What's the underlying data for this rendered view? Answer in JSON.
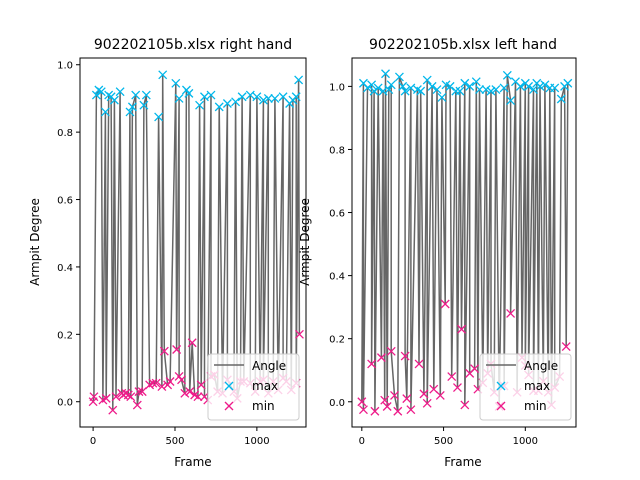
{
  "colors": {
    "angle": "#666666",
    "max": "#00b7eb",
    "min": "#ee1b8a"
  },
  "chart_data": [
    {
      "type": "line",
      "title": "902202105b.xlsx right hand",
      "xlabel": "Frame",
      "ylabel": "Armpit Degree",
      "xlim": [
        -80,
        1300
      ],
      "ylim": [
        -0.075,
        1.02
      ],
      "xticks": [
        "0",
        "500",
        "1000"
      ],
      "xtick_values": [
        0,
        500,
        1000
      ],
      "yticks": [
        "0.0",
        "0.2",
        "0.4",
        "0.6",
        "0.8",
        "1.0"
      ],
      "ytick_values": [
        0,
        0.2,
        0.4,
        0.6,
        0.8,
        1.0
      ],
      "legend": {
        "placement": "lower right",
        "entries": [
          "Angle",
          "max",
          "min"
        ]
      },
      "series": [
        {
          "name": "max",
          "marker": "x",
          "points": [
            [
              20,
              0.91
            ],
            [
              35,
              0.925
            ],
            [
              50,
              0.92
            ],
            [
              75,
              0.86
            ],
            [
              95,
              0.91
            ],
            [
              110,
              0.905
            ],
            [
              130,
              0.895
            ],
            [
              165,
              0.92
            ],
            [
              225,
              0.86
            ],
            [
              240,
              0.875
            ],
            [
              260,
              0.91
            ],
            [
              310,
              0.88
            ],
            [
              325,
              0.91
            ],
            [
              400,
              0.845
            ],
            [
              425,
              0.97
            ],
            [
              505,
              0.945
            ],
            [
              525,
              0.9
            ],
            [
              570,
              0.925
            ],
            [
              585,
              0.915
            ],
            [
              650,
              0.88
            ],
            [
              680,
              0.905
            ],
            [
              720,
              0.91
            ],
            [
              770,
              0.875
            ],
            [
              820,
              0.885
            ],
            [
              870,
              0.89
            ],
            [
              910,
              0.905
            ],
            [
              960,
              0.91
            ],
            [
              1000,
              0.905
            ],
            [
              1040,
              0.895
            ],
            [
              1070,
              0.9
            ],
            [
              1110,
              0.9
            ],
            [
              1160,
              0.905
            ],
            [
              1200,
              0.885
            ],
            [
              1220,
              0.895
            ],
            [
              1240,
              0.905
            ],
            [
              1255,
              0.955
            ]
          ]
        },
        {
          "name": "min",
          "marker": "x",
          "points": [
            [
              0,
              0.0
            ],
            [
              5,
              0.015
            ],
            [
              60,
              0.005
            ],
            [
              80,
              0.01
            ],
            [
              120,
              -0.025
            ],
            [
              140,
              0.015
            ],
            [
              175,
              0.025
            ],
            [
              185,
              0.02
            ],
            [
              200,
              0.025
            ],
            [
              215,
              0.02
            ],
            [
              230,
              0.015
            ],
            [
              270,
              -0.01
            ],
            [
              280,
              0.03
            ],
            [
              300,
              0.03
            ],
            [
              345,
              0.05
            ],
            [
              365,
              0.055
            ],
            [
              385,
              0.055
            ],
            [
              420,
              0.045
            ],
            [
              435,
              0.15
            ],
            [
              455,
              0.05
            ],
            [
              470,
              0.06
            ],
            [
              510,
              0.155
            ],
            [
              525,
              0.075
            ],
            [
              540,
              0.065
            ],
            [
              560,
              0.025
            ],
            [
              590,
              0.03
            ],
            [
              605,
              0.175
            ],
            [
              620,
              0.02
            ],
            [
              640,
              0.015
            ],
            [
              660,
              0.05
            ],
            [
              680,
              0.015
            ],
            [
              700,
              0.005
            ],
            [
              720,
              0.075
            ],
            [
              740,
              0.08
            ],
            [
              760,
              0.03
            ],
            [
              790,
              0.025
            ],
            [
              820,
              0.065
            ],
            [
              860,
              0.03
            ],
            [
              880,
              0.01
            ],
            [
              900,
              0.06
            ],
            [
              920,
              0.06
            ],
            [
              960,
              0.055
            ],
            [
              990,
              0.03
            ],
            [
              1020,
              0.06
            ],
            [
              1040,
              0.065
            ],
            [
              1070,
              0.025
            ],
            [
              1100,
              0.06
            ],
            [
              1130,
              0.035
            ],
            [
              1160,
              0.07
            ],
            [
              1180,
              0.06
            ],
            [
              1210,
              0.035
            ],
            [
              1240,
              0.055
            ],
            [
              1260,
              0.2
            ]
          ]
        }
      ]
    },
    {
      "type": "line",
      "title": "902202105b.xlsx left hand",
      "xlabel": "Frame",
      "ylabel": "Armpit Degree",
      "xlim": [
        -60,
        1310
      ],
      "ylim": [
        -0.08,
        1.09
      ],
      "xticks": [
        "0",
        "500",
        "1000"
      ],
      "xtick_values": [
        0,
        500,
        1000
      ],
      "yticks": [
        "0.0",
        "0.2",
        "0.4",
        "0.6",
        "0.8",
        "1.0"
      ],
      "ytick_values": [
        0,
        0.2,
        0.4,
        0.6,
        0.8,
        1.0
      ],
      "legend": {
        "placement": "lower right",
        "entries": [
          "Angle",
          "max",
          "min"
        ]
      },
      "series": [
        {
          "name": "max",
          "marker": "x",
          "points": [
            [
              10,
              1.01
            ],
            [
              35,
              0.995
            ],
            [
              60,
              1.005
            ],
            [
              75,
              0.985
            ],
            [
              100,
              0.995
            ],
            [
              130,
              0.985
            ],
            [
              145,
              1.04
            ],
            [
              165,
              0.99
            ],
            [
              180,
              1.005
            ],
            [
              230,
              1.03
            ],
            [
              250,
              1.0
            ],
            [
              265,
              0.985
            ],
            [
              300,
              0.995
            ],
            [
              340,
              0.99
            ],
            [
              360,
              0.985
            ],
            [
              400,
              1.02
            ],
            [
              430,
              1.0
            ],
            [
              460,
              0.99
            ],
            [
              490,
              0.965
            ],
            [
              515,
              1.005
            ],
            [
              540,
              1.0
            ],
            [
              575,
              0.985
            ],
            [
              600,
              0.985
            ],
            [
              630,
              1.01
            ],
            [
              660,
              1.0
            ],
            [
              700,
              1.015
            ],
            [
              720,
              0.99
            ],
            [
              760,
              0.99
            ],
            [
              790,
              0.985
            ],
            [
              820,
              0.99
            ],
            [
              870,
              0.995
            ],
            [
              890,
              1.035
            ],
            [
              910,
              0.955
            ],
            [
              940,
              1.015
            ],
            [
              970,
              1.0
            ],
            [
              1000,
              1.01
            ],
            [
              1020,
              1.0
            ],
            [
              1050,
              0.99
            ],
            [
              1070,
              1.01
            ],
            [
              1090,
              1.0
            ],
            [
              1120,
              1.005
            ],
            [
              1150,
              0.995
            ],
            [
              1180,
              0.995
            ],
            [
              1220,
              0.96
            ],
            [
              1240,
              1.0
            ],
            [
              1260,
              1.01
            ]
          ]
        },
        {
          "name": "min",
          "marker": "x",
          "points": [
            [
              0,
              0.0
            ],
            [
              10,
              -0.025
            ],
            [
              60,
              0.12
            ],
            [
              80,
              -0.03
            ],
            [
              120,
              0.14
            ],
            [
              140,
              0.005
            ],
            [
              155,
              -0.015
            ],
            [
              180,
              0.16
            ],
            [
              200,
              0.02
            ],
            [
              220,
              -0.03
            ],
            [
              265,
              0.145
            ],
            [
              275,
              0.01
            ],
            [
              300,
              -0.025
            ],
            [
              350,
              0.12
            ],
            [
              380,
              0.025
            ],
            [
              400,
              -0.005
            ],
            [
              440,
              0.04
            ],
            [
              480,
              0.02
            ],
            [
              510,
              0.31
            ],
            [
              550,
              0.08
            ],
            [
              585,
              0.045
            ],
            [
              610,
              0.23
            ],
            [
              630,
              -0.01
            ],
            [
              660,
              0.09
            ],
            [
              690,
              0.105
            ],
            [
              710,
              0.04
            ],
            [
              740,
              0.06
            ],
            [
              770,
              0.09
            ],
            [
              790,
              0.12
            ],
            [
              810,
              0.03
            ],
            [
              840,
              -0.015
            ],
            [
              870,
              0.05
            ],
            [
              910,
              0.28
            ],
            [
              950,
              0.03
            ],
            [
              980,
              0.14
            ],
            [
              1000,
              0.115
            ],
            [
              1020,
              0.085
            ],
            [
              1050,
              0.035
            ],
            [
              1080,
              0.035
            ],
            [
              1110,
              0.065
            ],
            [
              1140,
              0.03
            ],
            [
              1160,
              -0.01
            ],
            [
              1180,
              0.045
            ],
            [
              1210,
              0.08
            ],
            [
              1250,
              0.175
            ]
          ]
        }
      ]
    }
  ]
}
